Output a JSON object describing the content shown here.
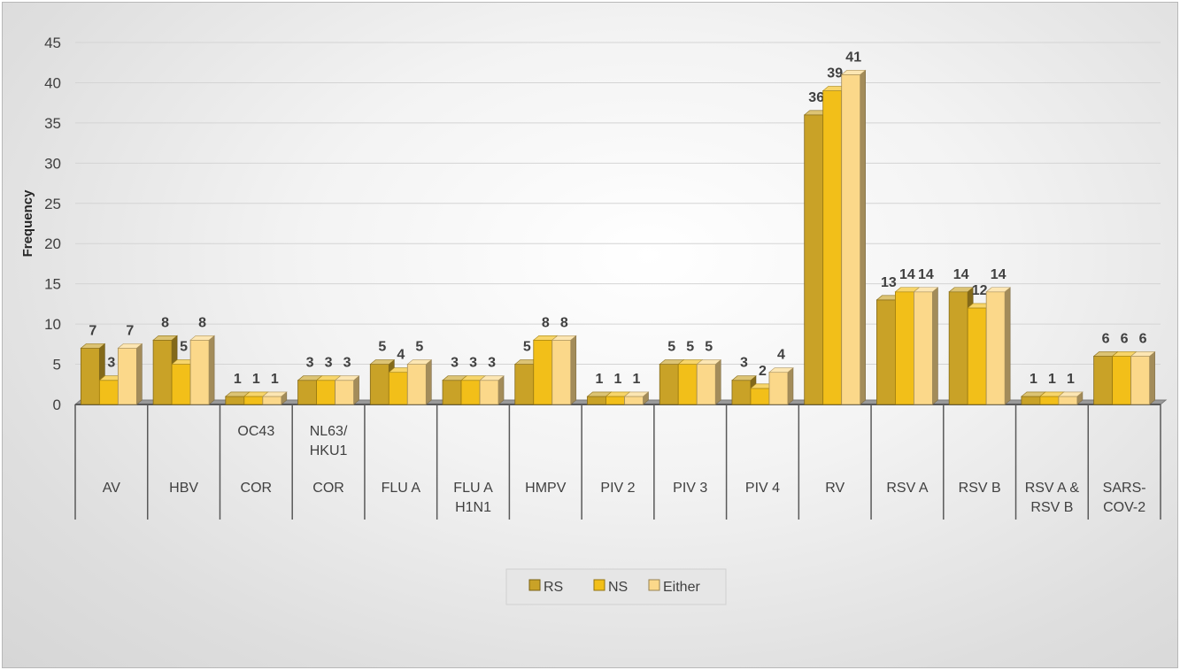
{
  "chart_data": {
    "type": "bar",
    "title": "",
    "xlabel": "",
    "ylabel": "Frequency",
    "ylim": [
      0,
      45
    ],
    "yticks": [
      0,
      5,
      10,
      15,
      20,
      25,
      30,
      35,
      40,
      45
    ],
    "grid": true,
    "legend_position": "bottom",
    "categories": [
      {
        "top": "",
        "bottom": "AV"
      },
      {
        "top": "",
        "bottom": "HBV"
      },
      {
        "top": "OC43",
        "bottom": "COR"
      },
      {
        "top": "NL63/\nHKU1",
        "bottom": "COR"
      },
      {
        "top": "",
        "bottom": "FLU A"
      },
      {
        "top": "",
        "bottom": "FLU A\nH1N1"
      },
      {
        "top": "",
        "bottom": "HMPV"
      },
      {
        "top": "",
        "bottom": "PIV 2"
      },
      {
        "top": "",
        "bottom": "PIV 3"
      },
      {
        "top": "",
        "bottom": "PIV 4"
      },
      {
        "top": "",
        "bottom": "RV"
      },
      {
        "top": "",
        "bottom": "RSV A"
      },
      {
        "top": "",
        "bottom": "RSV B"
      },
      {
        "top": "",
        "bottom": "RSV A &\nRSV B"
      },
      {
        "top": "",
        "bottom": "SARS-\nCOV-2"
      }
    ],
    "series": [
      {
        "name": "RS",
        "color": "#c9a227",
        "values": [
          7,
          8,
          1,
          3,
          5,
          3,
          5,
          1,
          5,
          3,
          36,
          13,
          14,
          1,
          6
        ]
      },
      {
        "name": "NS",
        "color": "#f2bf19",
        "values": [
          3,
          5,
          1,
          3,
          4,
          3,
          8,
          1,
          5,
          2,
          39,
          14,
          12,
          1,
          6
        ]
      },
      {
        "name": "Either",
        "color": "#fbd88a",
        "values": [
          7,
          8,
          1,
          3,
          5,
          3,
          8,
          1,
          5,
          4,
          41,
          14,
          14,
          1,
          6
        ]
      }
    ]
  }
}
